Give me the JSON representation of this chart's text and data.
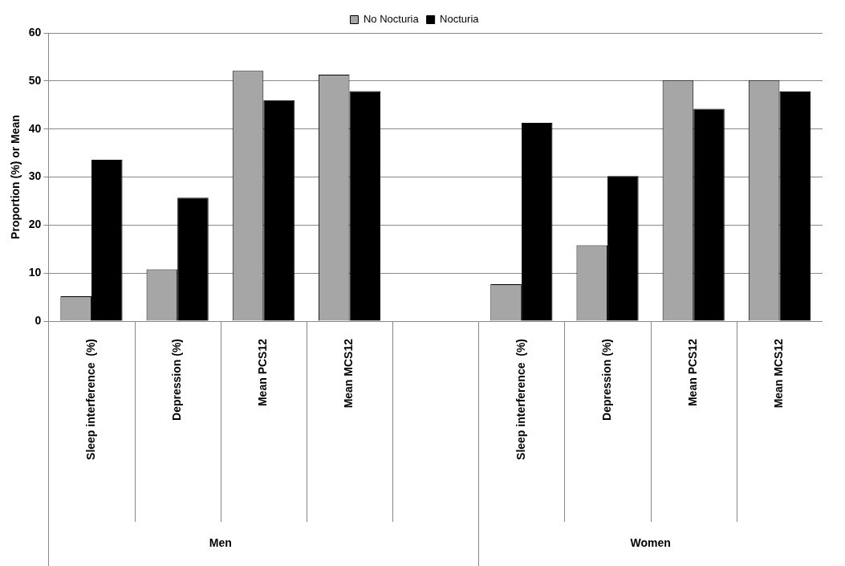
{
  "chart_data": {
    "type": "bar",
    "ylabel": "Proportion (%) or Mean",
    "categories": [
      "Sleep interference  (%)",
      "Depression (%)",
      "Mean PCS12",
      "Mean MCS12",
      null,
      "Sleep interference  (%)",
      "Depression (%)",
      "Mean PCS12",
      "Mean MCS12"
    ],
    "series": [
      {
        "name": "No Nocturia",
        "color": "#a6a6a6",
        "values": [
          5.2,
          10.8,
          52.1,
          51.3,
          null,
          7.7,
          15.8,
          50.1,
          50.1
        ]
      },
      {
        "name": "Nocturia",
        "color": "#000000",
        "values": [
          33.6,
          25.7,
          46.0,
          47.9,
          null,
          41.3,
          30.2,
          44.2,
          47.8
        ]
      }
    ],
    "ylim": [
      0,
      60
    ],
    "yticks": [
      0,
      10,
      20,
      30,
      40,
      50,
      60
    ],
    "grid": "y",
    "legend": "top",
    "annotations": [
      "Men",
      "Women"
    ]
  }
}
